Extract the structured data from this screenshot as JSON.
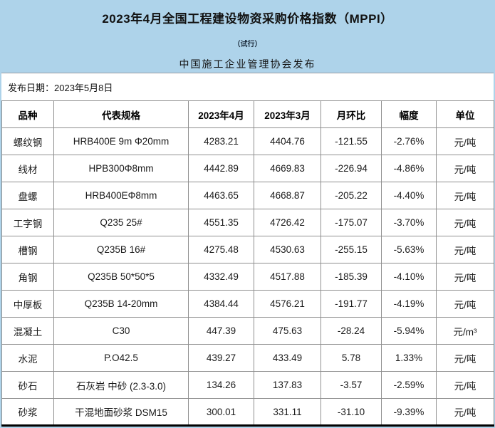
{
  "header": {
    "title": "2023年4月全国工程建设物资采购价格指数（MPPI）",
    "subtitle": "（试行）",
    "publisher": "中国施工企业管理协会发布"
  },
  "release": {
    "label": "发布日期：2023年5月8日"
  },
  "colors": {
    "banner_bg": "#aed3ea",
    "negative": "#2dbe6c",
    "positive": "#fb3434"
  },
  "table": {
    "columns": [
      "品种",
      "代表规格",
      "2023年4月",
      "2023年3月",
      "月环比",
      "幅度",
      "单位"
    ],
    "rows": [
      {
        "variety": "螺纹钢",
        "spec": "HRB400E 9m Φ20mm",
        "apr": "4283.21",
        "mar": "4404.76",
        "change": "-121.55",
        "pct": "-2.76%",
        "unit": "元/吨",
        "trend": "down"
      },
      {
        "variety": "线材",
        "spec": "HPB300Φ8mm",
        "apr": "4442.89",
        "mar": "4669.83",
        "change": "-226.94",
        "pct": "-4.86%",
        "unit": "元/吨",
        "trend": "down"
      },
      {
        "variety": "盘螺",
        "spec": "HRB400EΦ8mm",
        "apr": "4463.65",
        "mar": "4668.87",
        "change": "-205.22",
        "pct": "-4.40%",
        "unit": "元/吨",
        "trend": "down"
      },
      {
        "variety": "工字钢",
        "spec": "Q235 25#",
        "apr": "4551.35",
        "mar": "4726.42",
        "change": "-175.07",
        "pct": "-3.70%",
        "unit": "元/吨",
        "trend": "down"
      },
      {
        "variety": "槽钢",
        "spec": "Q235B 16#",
        "apr": "4275.48",
        "mar": "4530.63",
        "change": "-255.15",
        "pct": "-5.63%",
        "unit": "元/吨",
        "trend": "down"
      },
      {
        "variety": "角钢",
        "spec": "Q235B 50*50*5",
        "apr": "4332.49",
        "mar": "4517.88",
        "change": "-185.39",
        "pct": "-4.10%",
        "unit": "元/吨",
        "trend": "down"
      },
      {
        "variety": "中厚板",
        "spec": "Q235B 14-20mm",
        "apr": "4384.44",
        "mar": "4576.21",
        "change": "-191.77",
        "pct": "-4.19%",
        "unit": "元/吨",
        "trend": "down"
      },
      {
        "variety": "混凝土",
        "spec": "C30",
        "apr": "447.39",
        "mar": "475.63",
        "change": "-28.24",
        "pct": "-5.94%",
        "unit": "元/m³",
        "trend": "down"
      },
      {
        "variety": "水泥",
        "spec": "P.O42.5",
        "apr": "439.27",
        "mar": "433.49",
        "change": "5.78",
        "pct": "1.33%",
        "unit": "元/吨",
        "trend": "up"
      },
      {
        "variety": "砂石",
        "spec": "石灰岩 中砂 (2.3-3.0)",
        "apr": "134.26",
        "mar": "137.83",
        "change": "-3.57",
        "pct": "-2.59%",
        "unit": "元/吨",
        "trend": "down"
      },
      {
        "variety": "砂浆",
        "spec": "干混地面砂浆 DSM15",
        "apr": "300.01",
        "mar": "331.11",
        "change": "-31.10",
        "pct": "-9.39%",
        "unit": "元/吨",
        "trend": "down"
      }
    ]
  }
}
